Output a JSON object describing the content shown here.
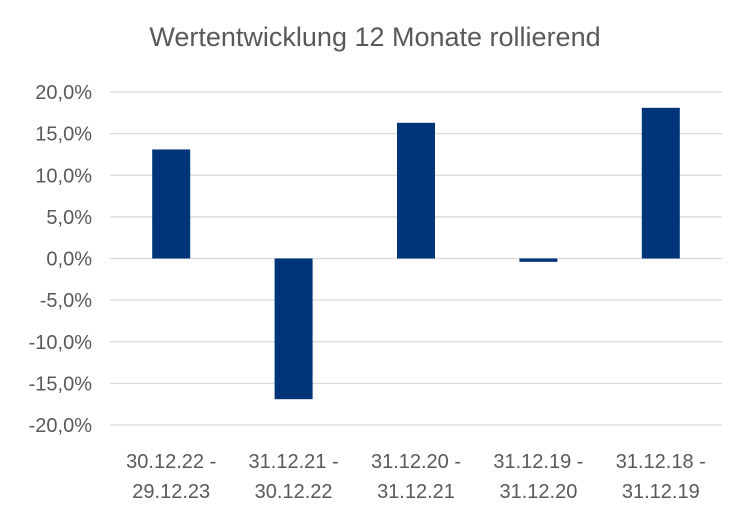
{
  "chart_data": {
    "type": "bar",
    "title": "Wertentwicklung 12 Monate rollierend",
    "xlabel": "",
    "ylabel": "",
    "categories": [
      [
        "30.12.22 -",
        "29.12.23"
      ],
      [
        "31.12.21 -",
        "30.12.22"
      ],
      [
        "31.12.20 -",
        "31.12.21"
      ],
      [
        "31.12.19 -",
        "31.12.20"
      ],
      [
        "31.12.18 -",
        "31.12.19"
      ]
    ],
    "values": [
      13.1,
      -16.9,
      16.3,
      -0.4,
      18.1
    ],
    "unit": "%",
    "ylim": [
      -20,
      20
    ],
    "yticks": [
      "20,0%",
      "15,0%",
      "10,0%",
      "5,0%",
      "0,0%",
      "-5,0%",
      "-10,0%",
      "-15,0%",
      "-20,0%"
    ],
    "grid": true,
    "legend": "none",
    "bar_color": "#003478",
    "grid_color": "#d9d9d9"
  }
}
